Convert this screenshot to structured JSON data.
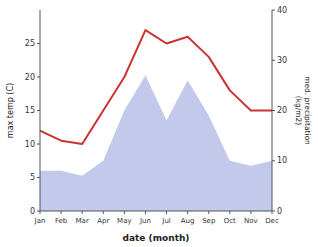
{
  "chart_data": {
    "type": "line",
    "categories": [
      "Jan",
      "Feb",
      "Mar",
      "Apr",
      "May",
      "Jun",
      "Jul",
      "Aug",
      "Sep",
      "Oct",
      "Nov",
      "Dec"
    ],
    "series": [
      {
        "type": "line",
        "color": "#cc3333",
        "values": [
          12,
          10.5,
          10,
          15,
          20,
          27,
          25,
          26,
          23,
          18,
          15,
          15
        ]
      },
      {
        "type": "area",
        "color": "#b8c0e8",
        "axis": "y2",
        "values": [
          8,
          8,
          7,
          10,
          20,
          27,
          18,
          26,
          19,
          10,
          9,
          10
        ]
      }
    ],
    "xlabel": "date (month)",
    "ylabel": "max temp (C)",
    "y2label": "med. precipitation\n(kg/m2)",
    "ylim": [
      0,
      30
    ],
    "yticks": [
      0,
      5,
      10,
      15,
      20,
      25
    ],
    "y2lim": [
      0,
      40
    ],
    "y2ticks": [
      0,
      10,
      20,
      30,
      40
    ],
    "grid": false
  }
}
